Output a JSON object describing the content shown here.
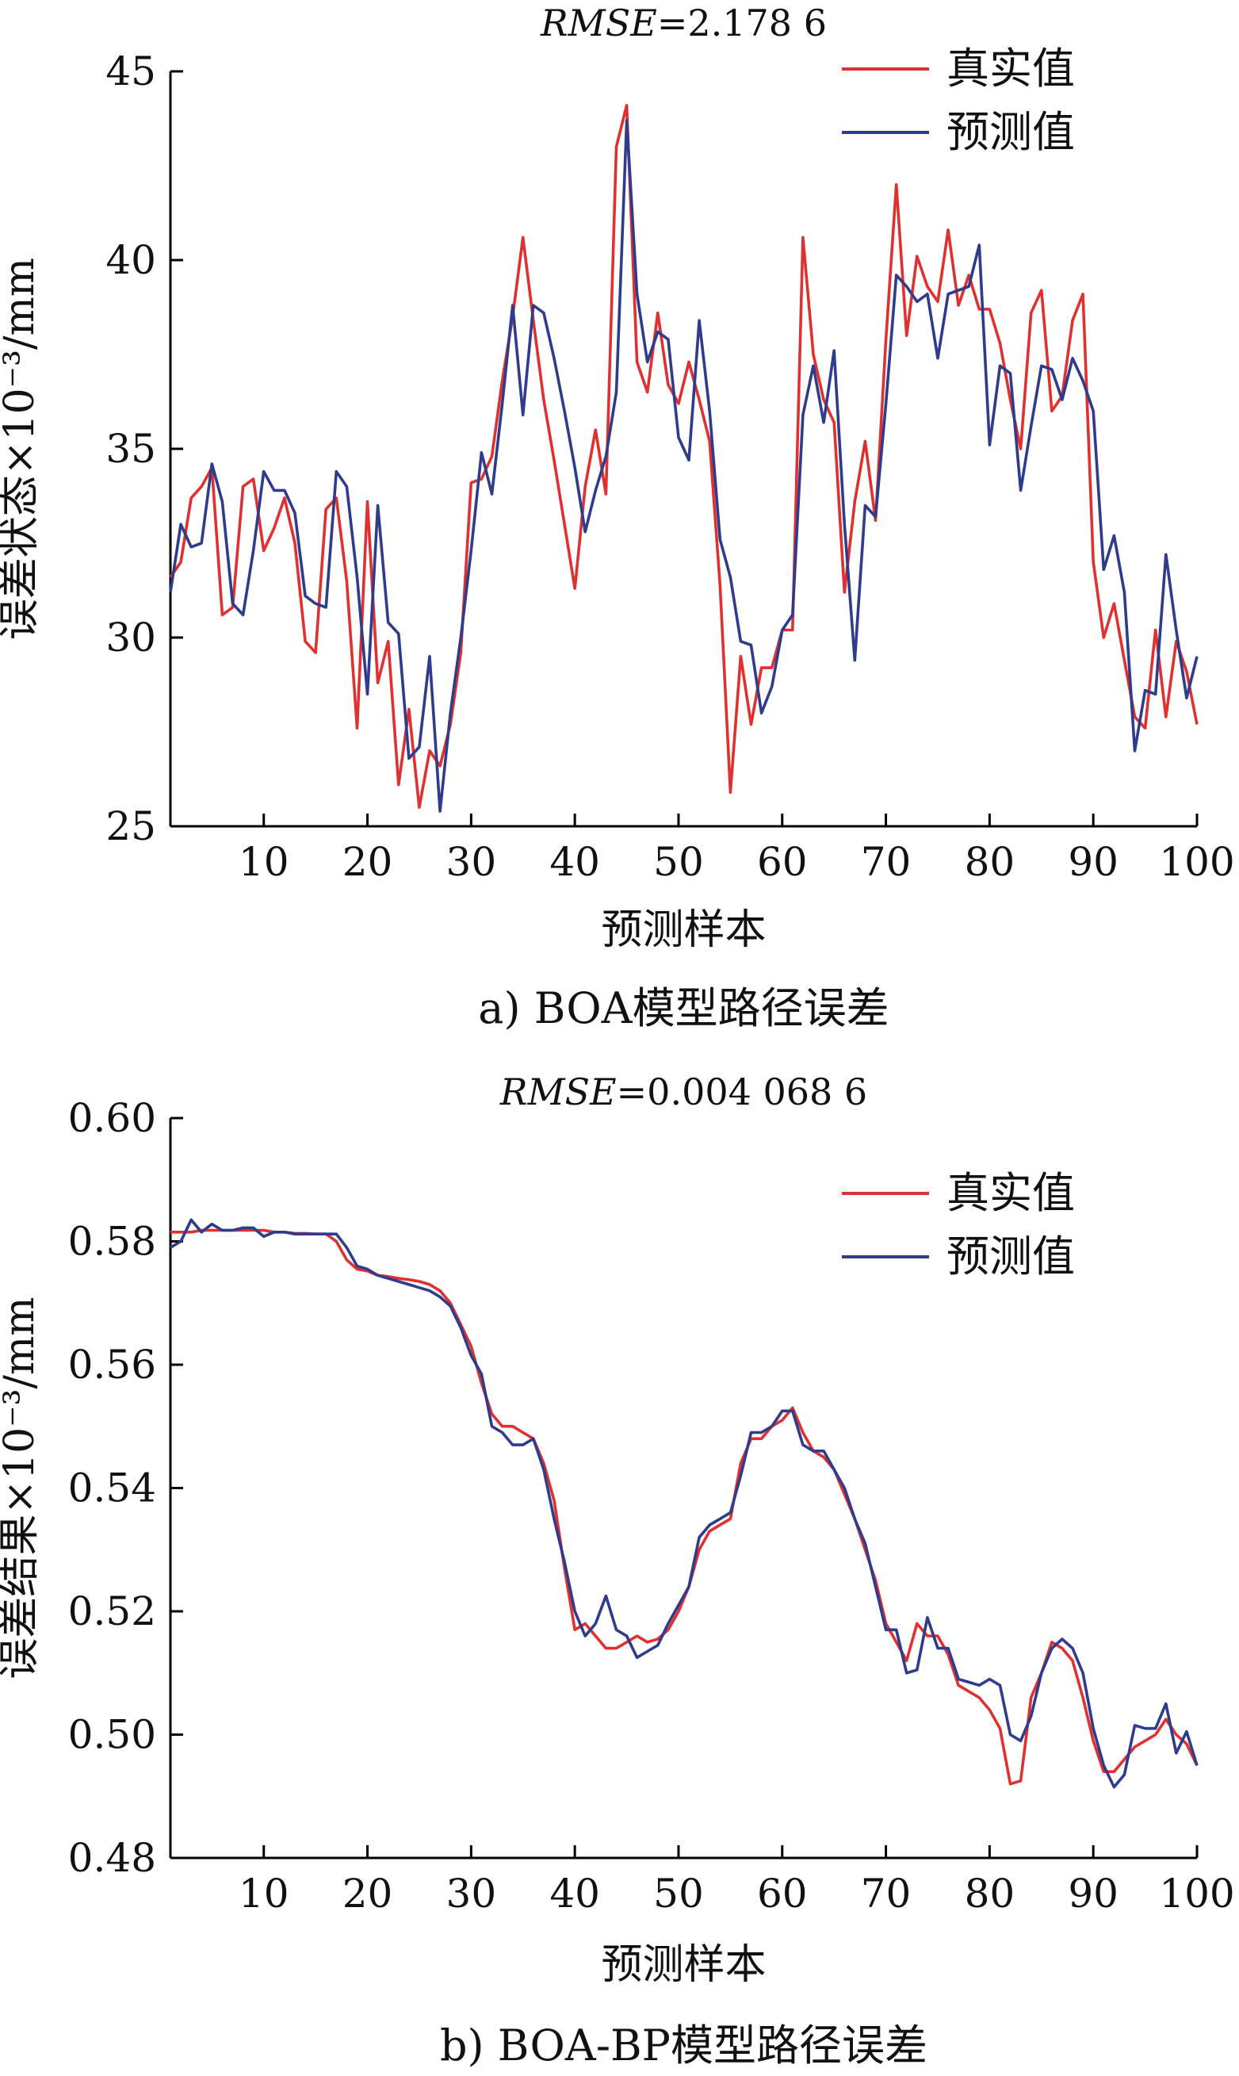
{
  "charts": [
    {
      "rmse_label": "RMSE",
      "rmse_value": "=2.178 6",
      "ylabel": "误差状态×10⁻³/mm",
      "xlabel": "预测样本",
      "caption": "a) BOA模型路径误差",
      "legend": [
        "真实值",
        "预测值"
      ]
    },
    {
      "rmse_label": "RMSE",
      "rmse_value": "=0.004 068 6",
      "ylabel": "误差结果×10⁻³/mm",
      "xlabel": "预测样本",
      "caption": "b) BOA-BP模型路径误差",
      "legend": [
        "真实值",
        "预测值"
      ]
    }
  ],
  "colors": {
    "actual": "#e03030",
    "predicted": "#2f3c8c",
    "axis": "#000000"
  },
  "chart_data": [
    {
      "type": "line",
      "title": "RMSE=2.178 6",
      "xlabel": "预测样本",
      "ylabel": "误差状态×10⁻³/mm",
      "xlim": [
        1,
        100
      ],
      "ylim": [
        25,
        45
      ],
      "xticks": [
        10,
        20,
        30,
        40,
        50,
        60,
        70,
        80,
        90,
        100
      ],
      "yticks": [
        25,
        30,
        35,
        40,
        45
      ],
      "legend_position": "top-right",
      "x_start": 1,
      "series": [
        {
          "name": "真实值",
          "color": "#e03030",
          "values": [
            31.6,
            32.0,
            33.7,
            34.0,
            34.5,
            30.6,
            30.8,
            34.0,
            34.2,
            32.3,
            32.9,
            33.7,
            32.5,
            29.9,
            29.6,
            33.4,
            33.7,
            31.5,
            27.6,
            33.6,
            28.8,
            29.9,
            26.1,
            28.1,
            25.5,
            27.0,
            26.6,
            27.7,
            29.6,
            34.1,
            34.2,
            34.8,
            36.8,
            38.5,
            40.6,
            38.4,
            36.3,
            34.7,
            33.0,
            31.3,
            34.0,
            35.5,
            33.8,
            43.0,
            44.1,
            37.3,
            36.5,
            38.6,
            36.7,
            36.2,
            37.3,
            36.3,
            35.2,
            31.4,
            25.9,
            29.5,
            27.7,
            29.2,
            29.2,
            30.2,
            30.2,
            40.6,
            37.5,
            36.3,
            35.7,
            31.2,
            33.6,
            35.2,
            33.1,
            37.9,
            42.0,
            38.0,
            40.1,
            39.3,
            38.9,
            40.8,
            38.8,
            39.6,
            38.7,
            38.7,
            37.8,
            36.3,
            35.0,
            38.6,
            39.2,
            36.0,
            36.4,
            38.4,
            39.1,
            32.0,
            30.0,
            30.9,
            29.4,
            27.9,
            27.6,
            30.2,
            27.9,
            29.9,
            29.1,
            27.7
          ]
        },
        {
          "name": "预测值",
          "color": "#2f3c8c",
          "values": [
            31.2,
            33.0,
            32.4,
            32.5,
            34.6,
            33.6,
            30.9,
            30.6,
            32.3,
            34.4,
            33.9,
            33.9,
            33.3,
            31.1,
            30.9,
            30.8,
            34.4,
            34.0,
            31.6,
            28.5,
            33.5,
            30.4,
            30.1,
            26.8,
            27.1,
            29.5,
            25.4,
            28.0,
            30.0,
            32.3,
            34.9,
            33.8,
            36.2,
            38.8,
            35.9,
            38.8,
            38.6,
            37.4,
            36.0,
            34.5,
            32.8,
            33.9,
            34.8,
            36.5,
            43.7,
            39.1,
            37.3,
            38.1,
            37.9,
            35.3,
            34.7,
            38.4,
            36.0,
            32.6,
            31.6,
            29.9,
            29.8,
            28.0,
            28.7,
            30.2,
            30.6,
            35.9,
            37.2,
            35.7,
            37.6,
            33.0,
            29.4,
            33.5,
            33.2,
            36.2,
            39.6,
            39.3,
            38.9,
            39.1,
            37.4,
            39.1,
            39.2,
            39.3,
            40.4,
            35.1,
            37.2,
            37.0,
            33.9,
            35.6,
            37.2,
            37.1,
            36.3,
            37.4,
            36.8,
            36.0,
            31.8,
            32.7,
            31.2,
            27.0,
            28.6,
            28.5,
            32.2,
            30.2,
            28.4,
            29.5
          ]
        }
      ]
    },
    {
      "type": "line",
      "title": "RMSE=0.004 068 6",
      "xlabel": "预测样本",
      "ylabel": "误差结果×10⁻³/mm",
      "xlim": [
        1,
        100
      ],
      "ylim": [
        0.48,
        0.6
      ],
      "xticks": [
        10,
        20,
        30,
        40,
        50,
        60,
        70,
        80,
        90,
        100
      ],
      "yticks": [
        0.48,
        0.5,
        0.52,
        0.54,
        0.56,
        0.58,
        0.6
      ],
      "legend_position": "top-right",
      "x_start": 1,
      "series": [
        {
          "name": "真实值",
          "color": "#e03030",
          "values": [
            0.5815,
            0.5815,
            0.5815,
            0.5818,
            0.5818,
            0.5818,
            0.5818,
            0.5818,
            0.5818,
            0.5818,
            0.5815,
            0.5815,
            0.5813,
            0.5813,
            0.5812,
            0.5812,
            0.58,
            0.577,
            0.5755,
            0.5752,
            0.5745,
            0.5743,
            0.574,
            0.5738,
            0.5735,
            0.573,
            0.572,
            0.57,
            0.5665,
            0.563,
            0.557,
            0.552,
            0.55,
            0.55,
            0.549,
            0.548,
            0.544,
            0.538,
            0.527,
            0.517,
            0.518,
            0.516,
            0.514,
            0.514,
            0.515,
            0.516,
            0.515,
            0.5155,
            0.517,
            0.52,
            0.524,
            0.53,
            0.533,
            0.534,
            0.535,
            0.544,
            0.548,
            0.548,
            0.55,
            0.551,
            0.553,
            0.549,
            0.546,
            0.545,
            0.543,
            0.539,
            0.535,
            0.53,
            0.525,
            0.518,
            0.515,
            0.512,
            0.518,
            0.516,
            0.516,
            0.513,
            0.508,
            0.507,
            0.506,
            0.504,
            0.501,
            0.492,
            0.4925,
            0.506,
            0.51,
            0.515,
            0.514,
            0.512,
            0.506,
            0.499,
            0.494,
            0.494,
            0.496,
            0.498,
            0.499,
            0.5,
            0.5025,
            0.5,
            0.4985,
            0.495
          ]
        },
        {
          "name": "预测值",
          "color": "#2f3c8c",
          "values": [
            0.579,
            0.58,
            0.5835,
            0.5815,
            0.5828,
            0.5818,
            0.5818,
            0.5822,
            0.5822,
            0.5808,
            0.5815,
            0.5815,
            0.5812,
            0.5812,
            0.5812,
            0.5812,
            0.5812,
            0.579,
            0.576,
            0.5755,
            0.5745,
            0.574,
            0.5735,
            0.573,
            0.5725,
            0.572,
            0.571,
            0.5695,
            0.566,
            0.5615,
            0.5585,
            0.55,
            0.549,
            0.547,
            0.547,
            0.548,
            0.543,
            0.535,
            0.528,
            0.52,
            0.516,
            0.518,
            0.5225,
            0.517,
            0.516,
            0.5125,
            0.5135,
            0.5145,
            0.518,
            0.521,
            0.524,
            0.532,
            0.534,
            0.535,
            0.536,
            0.542,
            0.549,
            0.549,
            0.55,
            0.5525,
            0.5525,
            0.547,
            0.546,
            0.546,
            0.543,
            0.54,
            0.535,
            0.531,
            0.524,
            0.517,
            0.517,
            0.51,
            0.5105,
            0.519,
            0.514,
            0.514,
            0.509,
            0.5085,
            0.508,
            0.509,
            0.508,
            0.5,
            0.499,
            0.503,
            0.51,
            0.514,
            0.5155,
            0.514,
            0.51,
            0.501,
            0.495,
            0.4915,
            0.4935,
            0.5015,
            0.501,
            0.501,
            0.505,
            0.497,
            0.5005,
            0.495
          ]
        }
      ]
    }
  ]
}
